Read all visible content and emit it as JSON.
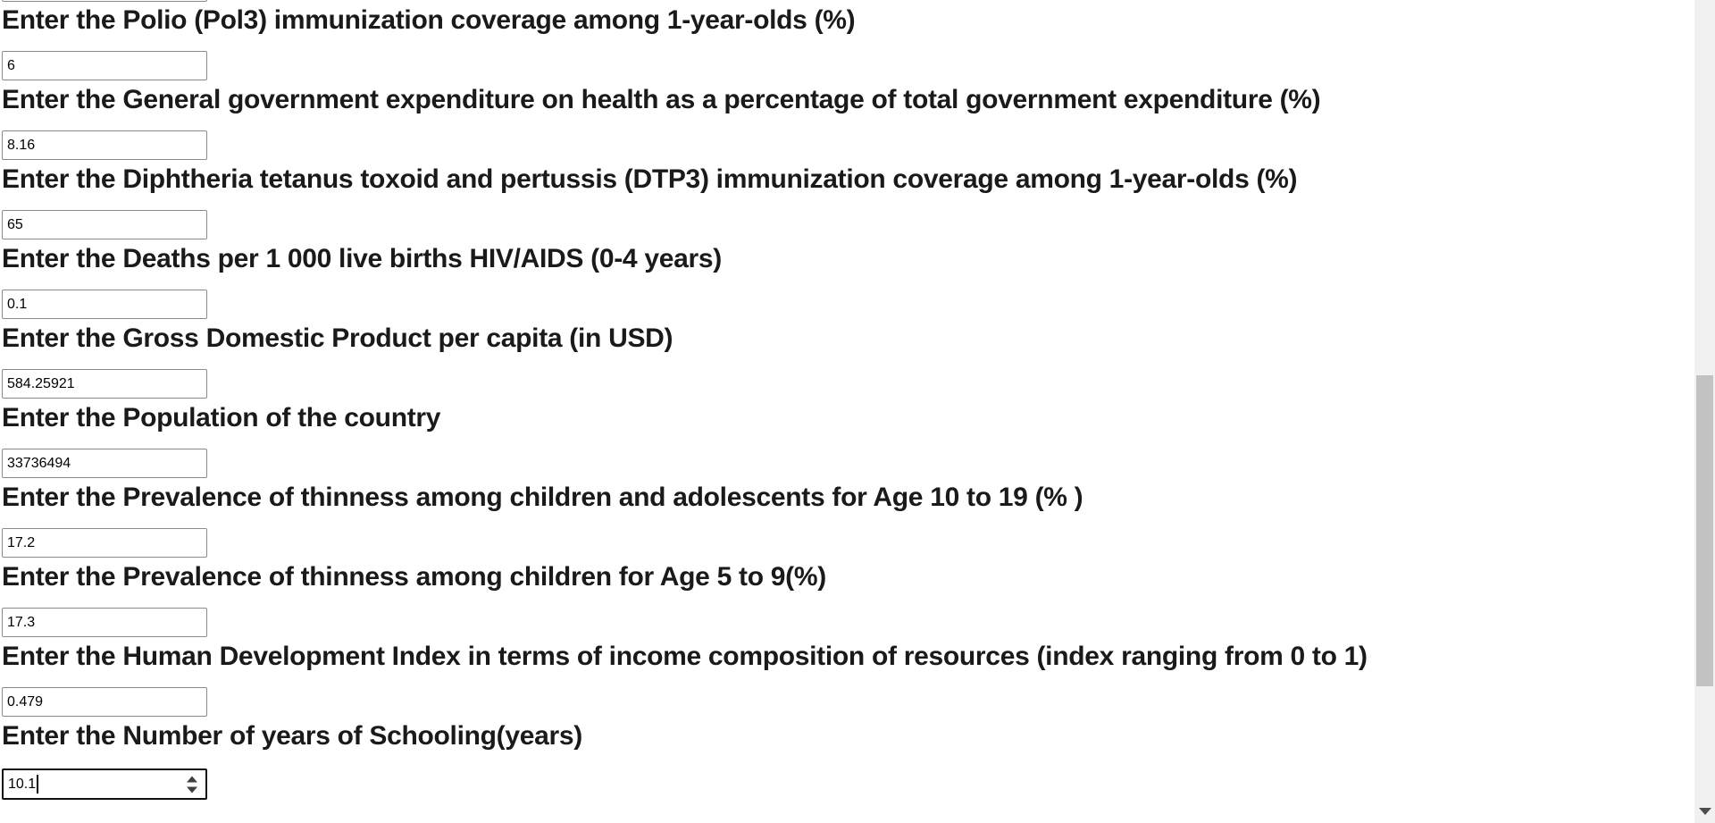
{
  "form": {
    "fields": [
      {
        "label": "Enter the Polio (Pol3) immunization coverage among 1-year-olds (%)",
        "value": "6"
      },
      {
        "label": "Enter the General government expenditure on health as a percentage of total government expenditure (%)",
        "value": "8.16"
      },
      {
        "label": "Enter the Diphtheria tetanus toxoid and pertussis (DTP3) immunization coverage among 1-year-olds (%)",
        "value": "65"
      },
      {
        "label": "Enter the Deaths per 1 000 live births HIV/AIDS (0-4 years)",
        "value": "0.1"
      },
      {
        "label": "Enter the Gross Domestic Product per capita (in USD)",
        "value": "584.25921"
      },
      {
        "label": "Enter the Population of the country",
        "value": "33736494"
      },
      {
        "label": "Enter the Prevalence of thinness among children and adolescents for Age 10 to 19 (% )",
        "value": "17.2"
      },
      {
        "label": "Enter the Prevalence of thinness among children for Age 5 to 9(%)",
        "value": "17.3"
      },
      {
        "label": "Enter the Human Development Index in terms of income composition of resources (index ranging from 0 to 1)",
        "value": "0.479"
      },
      {
        "label": "Enter the Number of years of Schooling(years)",
        "value": "10.1"
      }
    ]
  },
  "colors": {
    "input_border": "#8b8b8b",
    "focused_input_border": "#0f0f0f",
    "label_text": "#1a1a1a",
    "scrollbar_track": "#f1f1f1",
    "scrollbar_thumb": "#c2c2c2",
    "scrollbar_arrow": "#4d4d4d"
  }
}
